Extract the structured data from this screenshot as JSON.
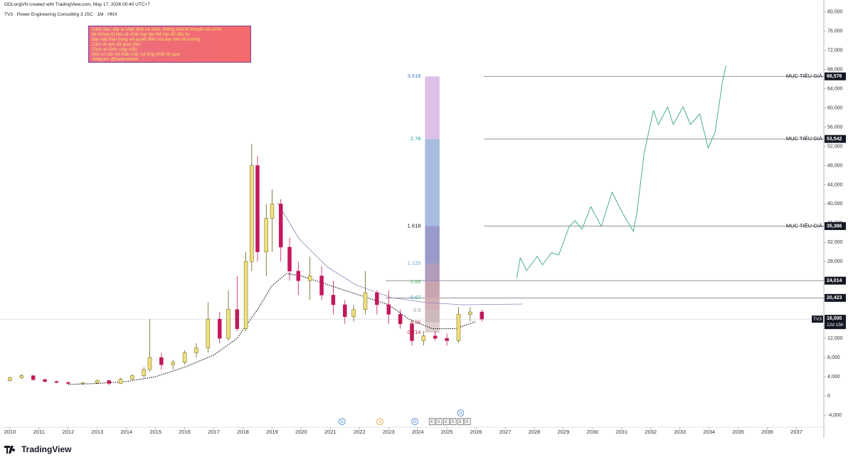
{
  "header": {
    "credit": "GDLongVN created with TradingView.com, May 17, 2026 00:40 UTC+7",
    "symbol_line": "TV3 · Power Engineering Consulting 3 JSC · 1M · HNX"
  },
  "note": {
    "lines": [
      "Cảnh báo: đây là nhận định cá nhân, không phải lời khuyên tài chính,",
      "tôi không lôi kéo cá nhân hay tập thể nào đó đầu tư.",
      "Bạn hãy thận trọng với quyết định của bạn trên thị trường.",
      "Cảm ơn bạn đã quan tâm.",
      "Chúc an lành, may mắn.",
      "Nếu có câu hỏi thắc mắc vui lòng nhắn tin qua",
      "Telegram @traderduklch"
    ],
    "color": "#f7e46a"
  },
  "branding": "TradingView",
  "chart_data": {
    "type": "candlestick",
    "xlim": [
      2009.66,
      2037.94
    ],
    "ylim": [
      -6230,
      82490
    ],
    "xticks": [
      2010,
      2011,
      2012,
      2013,
      2014,
      2015,
      2016,
      2017,
      2018,
      2019,
      2020,
      2021,
      2022,
      2023,
      2024,
      2025,
      2026,
      2027,
      2028,
      2029,
      2030,
      2031,
      2032,
      2033,
      2034,
      2035,
      2036,
      2037
    ],
    "yticks": [
      {
        "value": -4000,
        "label": "-4,000"
      },
      0,
      {
        "value": 4000,
        "label": "4,000"
      },
      {
        "value": 8000,
        "label": "8,000"
      },
      {
        "value": 12000,
        "label": "12,000"
      },
      {
        "value": 16000,
        "label": "16,000"
      },
      {
        "value": 20000,
        "label": "20,000"
      },
      {
        "value": 24000,
        "label": "24,000"
      },
      {
        "value": 28000,
        "label": "28,000"
      },
      {
        "value": 32000,
        "label": "32,000"
      },
      {
        "value": 36000,
        "label": "36,000"
      },
      {
        "value": 40000,
        "label": "40,000"
      },
      {
        "value": 44000,
        "label": "44,000"
      },
      {
        "value": 48000,
        "label": "48,000"
      },
      {
        "value": 52000,
        "label": "52,000"
      },
      {
        "value": 56000,
        "label": "56,000"
      },
      {
        "value": 60000,
        "label": "60,000"
      },
      {
        "value": 64000,
        "label": "64,000"
      },
      {
        "value": 68000,
        "label": "68,000"
      },
      {
        "value": 72000,
        "label": "72,000"
      },
      {
        "value": 76000,
        "label": "76,000"
      },
      {
        "value": 80000,
        "label": "80,000"
      }
    ],
    "grid": false,
    "candles": {
      "up_color": "#efe07c",
      "down_color": "#c2185b",
      "x": [
        2010.0,
        2010.4,
        2010.8,
        2011.2,
        2011.6,
        2012.0,
        2012.5,
        2013.0,
        2013.4,
        2013.8,
        2014.2,
        2014.6,
        2014.8,
        2015.2,
        2015.6,
        2016.0,
        2016.4,
        2016.8,
        2017.2,
        2017.5,
        2017.8,
        2018.1,
        2018.3,
        2018.5,
        2018.8,
        2019.0,
        2019.3,
        2019.6,
        2019.9,
        2020.3,
        2020.7,
        2021.1,
        2021.5,
        2021.8,
        2022.2,
        2022.6,
        2023.0,
        2023.4,
        2023.8,
        2024.2,
        2024.6,
        2025.0,
        2025.4,
        2025.8,
        2026.2
      ],
      "open": [
        3200,
        3800,
        4200,
        3400,
        3000,
        2800,
        2600,
        2700,
        3200,
        2600,
        3500,
        4200,
        5500,
        8000,
        6500,
        7000,
        9000,
        10000,
        16000,
        12000,
        18000,
        14000,
        28000,
        48000,
        30000,
        37000,
        40000,
        31000,
        26000,
        24000,
        25000,
        21000,
        19000,
        16500,
        18000,
        21500,
        19000,
        17000,
        15000,
        11500,
        12500,
        12000,
        11500,
        17000,
        17500
      ],
      "high": [
        4000,
        4600,
        4400,
        3600,
        3200,
        3000,
        2900,
        3400,
        3300,
        3800,
        4500,
        6000,
        16000,
        9000,
        7500,
        9500,
        11000,
        19500,
        17500,
        22000,
        25000,
        30000,
        52500,
        50000,
        40000,
        43000,
        41000,
        33000,
        28000,
        29000,
        27000,
        24000,
        20000,
        19000,
        26000,
        22000,
        22000,
        18000,
        15500,
        13500,
        13500,
        13000,
        18500,
        18500,
        18000
      ],
      "low": [
        3000,
        3500,
        3200,
        2800,
        2600,
        2400,
        2300,
        2500,
        2200,
        2500,
        3300,
        3800,
        5000,
        5500,
        5500,
        6500,
        8000,
        9000,
        11000,
        11500,
        13500,
        13500,
        26000,
        28000,
        25000,
        30000,
        28000,
        24000,
        21000,
        20000,
        20000,
        17000,
        15000,
        15500,
        17000,
        17000,
        15000,
        14000,
        10500,
        10500,
        11500,
        10500,
        11000,
        15500,
        15500
      ],
      "close": [
        3800,
        4200,
        3400,
        3000,
        2800,
        2600,
        2700,
        3200,
        2600,
        3500,
        4200,
        5500,
        8000,
        6500,
        7000,
        9000,
        10000,
        16000,
        12000,
        18000,
        14000,
        28000,
        48000,
        30000,
        37000,
        40000,
        31000,
        26000,
        24000,
        25000,
        21000,
        19000,
        16500,
        18000,
        21500,
        19000,
        17000,
        15000,
        11500,
        12500,
        12000,
        11500,
        17000,
        17500,
        16000
      ]
    },
    "moving_average": {
      "color": "#111111",
      "x": [
        2012.0,
        2013.0,
        2014.0,
        2015.0,
        2016.0,
        2017.0,
        2017.8,
        2018.5,
        2019.0,
        2019.5,
        2020.0,
        2021.0,
        2022.0,
        2023.0,
        2023.7,
        2024.5,
        2025.3,
        2026.0
      ],
      "values": [
        2400,
        2600,
        3000,
        4000,
        6000,
        8500,
        12000,
        18000,
        23000,
        25500,
        25000,
        23000,
        21000,
        19000,
        16000,
        14000,
        14000,
        15500
      ]
    },
    "trend_curve": {
      "color": "#8e86b8",
      "x": [
        2019.19,
        2019.92,
        2020.9,
        2021.87,
        2023.1,
        2024.3,
        2025.54,
        2027.6
      ],
      "values": [
        40200,
        32790,
        26850,
        23150,
        20470,
        19440,
        18990,
        19140
      ]
    },
    "projection": {
      "color": "#4caf8a",
      "x": [
        2027.4,
        2027.52,
        2027.74,
        2028.1,
        2028.28,
        2028.59,
        2028.84,
        2029.2,
        2029.4,
        2029.64,
        2029.94,
        2030.3,
        2030.67,
        2031.04,
        2031.4,
        2031.52,
        2031.77,
        2032.09,
        2032.26,
        2032.58,
        2032.77,
        2033.11,
        2033.36,
        2033.68,
        2033.97,
        2034.21,
        2034.46,
        2034.58
      ],
      "values": [
        24630,
        28780,
        26110,
        29080,
        27300,
        29820,
        29380,
        35310,
        36500,
        34720,
        39470,
        35310,
        42430,
        37980,
        34270,
        37980,
        50590,
        59500,
        56530,
        60240,
        56530,
        60240,
        56530,
        58750,
        51630,
        55040,
        65430,
        68840
      ]
    },
    "fib": {
      "x": [
        2024.25,
        2024.75
      ],
      "levels": [
        {
          "ratio": 3.618,
          "price": 66576,
          "color": "#3f7fc9",
          "zone_color": "#dab8e6"
        },
        {
          "ratio": 2.78,
          "price": 53542,
          "color": "#1f9aa0",
          "zone_color": "#9fb5dc"
        },
        {
          "ratio": 1.618,
          "price": 35386,
          "color": "#111111",
          "zone_color": "#8d8fc4"
        },
        {
          "ratio": 1.125,
          "price": 27600,
          "color": "#6aa8e0",
          "zone_color": "#a892b3"
        },
        {
          "ratio": 0.88,
          "price": 23700,
          "color": "#5cbf6a",
          "zone_color": "#c29aa6"
        },
        {
          "ratio": 0.67,
          "price": 20500,
          "color": "#3aa0a0",
          "zone_color": "#cfa8ae"
        },
        {
          "ratio": 0.5,
          "price": 17800,
          "color": "#8aa08a",
          "zone_color": "#c9b3b6"
        },
        {
          "ratio": 0.36,
          "price": 15300,
          "color": "#c0506a",
          "zone_color": "#dccaca"
        },
        {
          "ratio": 0.214,
          "price": 13200,
          "color": "#c0304a",
          "zone_color": null
        }
      ]
    },
    "levels": [
      {
        "label": "MỤC TIÊU GIÁ",
        "start": 2026.27,
        "price": {
          "value": 66576,
          "label": "66,576"
        }
      },
      {
        "label": "MỤC TIÊU GIÁ",
        "start": 2026.27,
        "price": {
          "value": 53542,
          "label": "53,542"
        }
      },
      {
        "label": "MỤC TIÊU GIÁ",
        "start": 2026.27,
        "price": {
          "value": 35386,
          "label": "35,386"
        }
      },
      {
        "start": 2022.9,
        "price": {
          "value": 24014,
          "label": "24,014"
        }
      },
      {
        "start": 2022.9,
        "price": {
          "value": 20423,
          "label": "20,423"
        }
      }
    ],
    "last": {
      "symbol": "TV3",
      "price": {
        "value": 16000,
        "label": "16,000"
      },
      "countdown": "12d 15h"
    },
    "events": [
      {
        "label": "D",
        "x": 2021.4,
        "color": "#3f7fc9"
      },
      {
        "label": "S",
        "x": 2022.7,
        "color": "#e0a030"
      },
      {
        "label": "D",
        "x": 2023.9,
        "color": "#3f7fc9"
      },
      {
        "label": "E",
        "x": 2024.49,
        "color": "#555555"
      },
      {
        "label": "E",
        "x": 2024.73,
        "color": "#555555"
      },
      {
        "label": "E",
        "x": 2024.98,
        "color": "#555555"
      },
      {
        "label": "E",
        "x": 2025.22,
        "color": "#555555"
      },
      {
        "label": "E",
        "x": 2025.47,
        "color": "#555555"
      },
      {
        "label": "E",
        "x": 2025.71,
        "color": "#555555"
      },
      {
        "label": "D",
        "x": 2025.47,
        "color": "#3f7fc9"
      }
    ]
  }
}
